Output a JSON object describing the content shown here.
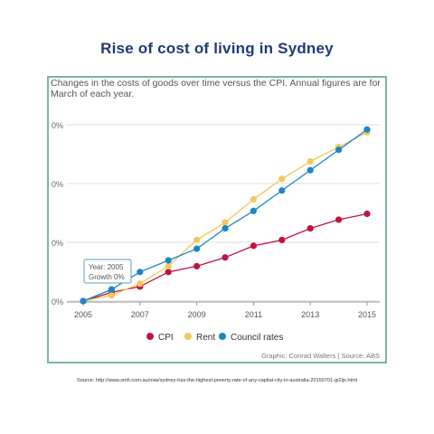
{
  "page": {
    "title": "Rise of cost of living in Sydney",
    "source": "Source: http://www.smh.com.au/nsw/sydney-has-the-highest-poverty-rate-of-any-capital-city-in-australia-20150701-gi2ijx.html"
  },
  "chart_data": {
    "type": "line",
    "subtitle": "Changes in the costs of goods over time versus the CPI. Annual figures are for March of each year.",
    "x": [
      2005,
      2006,
      2007,
      2008,
      2009,
      2010,
      2011,
      2012,
      2013,
      2014,
      2015
    ],
    "x_tick_labels": [
      "2005",
      "2007",
      "2009",
      "2011",
      "2013",
      "2015"
    ],
    "y_tick_labels": [
      "0%",
      "0%",
      "0%",
      "0%"
    ],
    "series": [
      {
        "name": "CPI",
        "color": "#c0143c",
        "values": [
          0,
          1.5,
          2.5,
          5,
          6,
          7.5,
          9.5,
          10.5,
          12.5,
          14,
          15
        ]
      },
      {
        "name": "Rent",
        "color": "#f2c75c",
        "values": [
          0,
          1,
          3,
          6,
          10.5,
          13.5,
          17.5,
          21,
          24,
          26.5,
          29
        ]
      },
      {
        "name": "Council rates",
        "color": "#1a86c4",
        "values": [
          0,
          2,
          5,
          7,
          9,
          12.5,
          15.5,
          19,
          22.5,
          26,
          29.5
        ]
      }
    ],
    "tooltip": {
      "year": "Year: 2005",
      "growth": "Growth 0%"
    },
    "credit": "Graphic: Conrad Walters | Source: ABS",
    "grid": true,
    "legend": "bottom"
  }
}
